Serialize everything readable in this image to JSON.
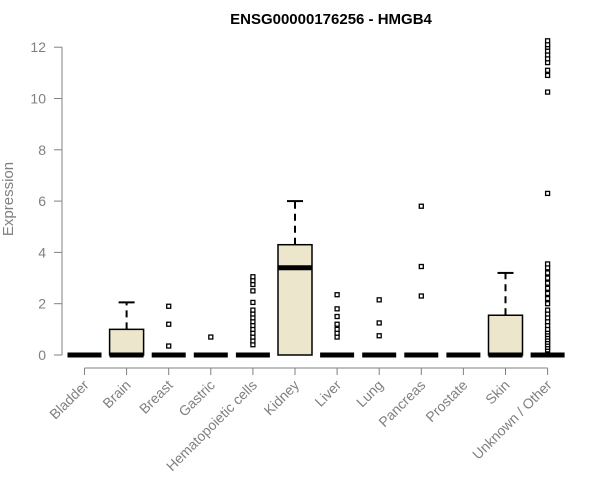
{
  "chart_data": {
    "type": "boxplot",
    "title": "ENSG00000176256 - HMGB4",
    "xlabel": "",
    "ylabel": "Expression",
    "ylim": [
      0,
      12.2
    ],
    "yticks": [
      0,
      2,
      4,
      6,
      8,
      10,
      12
    ],
    "grid": false,
    "box_fill": "#ece6cd",
    "categories": [
      "Bladder",
      "Brain",
      "Breast",
      "Gastric",
      "Hematopoietic cells",
      "Kidney",
      "Liver",
      "Lung",
      "Pancreas",
      "Prostate",
      "Skin",
      "Unknown / Other"
    ],
    "boxes": [
      {
        "q1": 0,
        "median": 0,
        "q3": 0,
        "whisker_low": 0,
        "whisker_high": 0,
        "outliers": []
      },
      {
        "q1": 0,
        "median": 0,
        "q3": 1.0,
        "whisker_low": 0,
        "whisker_high": 2.05,
        "outliers": []
      },
      {
        "q1": 0,
        "median": 0,
        "q3": 0,
        "whisker_low": 0,
        "whisker_high": 0,
        "outliers": [
          0.35,
          1.2,
          1.9
        ]
      },
      {
        "q1": 0,
        "median": 0,
        "q3": 0,
        "whisker_low": 0,
        "whisker_high": 0,
        "outliers": [
          0.7
        ]
      },
      {
        "q1": 0,
        "median": 0,
        "q3": 0,
        "whisker_low": 0,
        "whisker_high": 0,
        "outliers": [
          0.4,
          0.55,
          0.7,
          0.85,
          1.0,
          1.15,
          1.3,
          1.45,
          1.6,
          1.75,
          2.05,
          2.5,
          2.75,
          2.9,
          3.05
        ]
      },
      {
        "q1": 0,
        "median": 3.4,
        "q3": 4.3,
        "whisker_low": 0,
        "whisker_high": 6.0,
        "outliers": []
      },
      {
        "q1": 0,
        "median": 0,
        "q3": 0,
        "whisker_low": 0,
        "whisker_high": 0,
        "outliers": [
          0.7,
          0.85,
          1.0,
          1.2,
          1.5,
          1.8,
          2.35
        ]
      },
      {
        "q1": 0,
        "median": 0,
        "q3": 0,
        "whisker_low": 0,
        "whisker_high": 0,
        "outliers": [
          0.75,
          1.25,
          2.15
        ]
      },
      {
        "q1": 0,
        "median": 0,
        "q3": 0,
        "whisker_low": 0,
        "whisker_high": 0,
        "outliers": [
          2.3,
          3.45,
          5.8
        ]
      },
      {
        "q1": 0,
        "median": 0,
        "q3": 0,
        "whisker_low": 0,
        "whisker_high": 0,
        "outliers": []
      },
      {
        "q1": 0,
        "median": 0,
        "q3": 1.55,
        "whisker_low": 0,
        "whisker_high": 3.2,
        "outliers": []
      },
      {
        "q1": 0,
        "median": 0,
        "q3": 0,
        "whisker_low": 0,
        "whisker_high": 0,
        "outliers": [
          0.2,
          0.3,
          0.4,
          0.5,
          0.6,
          0.7,
          0.8,
          0.9,
          1.0,
          1.15,
          1.3,
          1.45,
          1.6,
          1.75,
          2.0,
          2.2,
          2.4,
          2.6,
          2.8,
          3.0,
          3.2,
          3.4,
          3.55,
          6.3,
          10.25,
          10.9,
          11.1,
          11.4,
          11.55,
          11.7,
          11.85,
          12.0,
          12.1,
          12.25
        ]
      }
    ]
  }
}
